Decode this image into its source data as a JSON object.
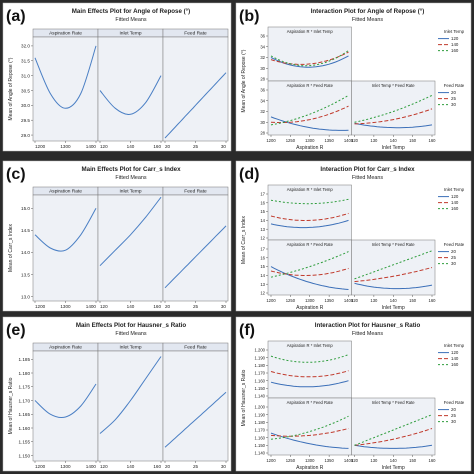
{
  "colors": {
    "frame": "#2a2a2a",
    "panel_bg": "#ffffff",
    "plot_bg": "#eef1f6",
    "strip_bg": "#e2e7f0",
    "line": "#4a7fc4",
    "t120": "#3b6fb8",
    "t140": "#c0392b",
    "t160": "#2e9d3c"
  },
  "chart_data": [
    {
      "type": "line",
      "panel_letter": "(a)",
      "title": "Main Effects Plot for Angle of Repose (°)",
      "subtitle": "Fitted Means",
      "ylabel": "Mean of Angle of Repose (°)",
      "ylim": [
        28.8,
        32.3
      ],
      "yticks": [
        "29.0",
        "29.5",
        "30.0",
        "30.5",
        "31.0",
        "31.5",
        "32.0"
      ],
      "facets": [
        {
          "name": "Aspiration Rate",
          "xlim": [
            1200,
            1400
          ],
          "xticks": [
            "1200",
            "1300",
            "1400"
          ],
          "series": [
            {
              "x": [
                1200,
                1250,
                1300,
                1350,
                1400
              ],
              "y": [
                31.6,
                30.4,
                29.9,
                30.4,
                32.0
              ]
            }
          ]
        },
        {
          "name": "Inlet Temp",
          "xlim": [
            120,
            160
          ],
          "xticks": [
            "120",
            "140",
            "160"
          ],
          "series": [
            {
              "x": [
                120,
                130,
                140,
                150,
                160
              ],
              "y": [
                30.5,
                29.9,
                29.7,
                30.1,
                31.0
              ]
            }
          ]
        },
        {
          "name": "Feed Rate",
          "xlim": [
            20,
            30
          ],
          "xticks": [
            "20",
            "25",
            "30"
          ],
          "series": [
            {
              "x": [
                20,
                25,
                30
              ],
              "y": [
                28.9,
                30.0,
                31.1
              ]
            }
          ]
        }
      ]
    },
    {
      "type": "line",
      "panel_letter": "(b)",
      "title": "Interaction Plot for Angle of Repose (°)",
      "subtitle": "Fitted Means",
      "ylabel": "Mean of Angle of Repose (°)",
      "ylim": [
        28,
        36
      ],
      "yticks": [
        "28",
        "30",
        "32",
        "34",
        "36"
      ],
      "xlabel_left": "Aspiration R",
      "xlabel_right": "Inlet Temp",
      "cells": [
        {
          "label": "Aspiration R * Inlet Temp",
          "pos": "tl",
          "xlim": [
            1200,
            1400
          ],
          "xticks": [],
          "series": [
            {
              "key": "t120",
              "x": [
                1200,
                1300,
                1400
              ],
              "y": [
                32.0,
                30.2,
                32.3
              ]
            },
            {
              "key": "t140",
              "x": [
                1200,
                1300,
                1400
              ],
              "y": [
                31.6,
                30.8,
                33.0
              ]
            },
            {
              "key": "t160",
              "x": [
                1200,
                1300,
                1400
              ],
              "y": [
                32.3,
                30.5,
                33.3
              ]
            }
          ]
        },
        {
          "label": "Aspiration R * Feed Rate",
          "pos": "bl",
          "xlim": [
            1200,
            1400
          ],
          "xticks": [
            "1200",
            "1250",
            "1300",
            "1350",
            "1400"
          ],
          "series": [
            {
              "key": "t120",
              "x": [
                1200,
                1300,
                1400
              ],
              "y": [
                31.0,
                29.0,
                28.5
              ]
            },
            {
              "key": "t140",
              "x": [
                1200,
                1300,
                1400
              ],
              "y": [
                30.0,
                30.5,
                33.0
              ]
            },
            {
              "key": "t160",
              "x": [
                1200,
                1300,
                1400
              ],
              "y": [
                29.5,
                31.5,
                35.0
              ]
            }
          ]
        },
        {
          "label": "Inlet Temp * Feed Rate",
          "pos": "br",
          "xlim": [
            120,
            160
          ],
          "xticks": [
            "120",
            "130",
            "140",
            "150",
            "160"
          ],
          "series": [
            {
              "key": "t120",
              "x": [
                120,
                140,
                160
              ],
              "y": [
                29.8,
                29.0,
                29.5
              ]
            },
            {
              "key": "t140",
              "x": [
                120,
                140,
                160
              ],
              "y": [
                29.7,
                30.5,
                32.5
              ]
            },
            {
              "key": "t160",
              "x": [
                120,
                140,
                160
              ],
              "y": [
                30.0,
                32.0,
                35.0
              ]
            }
          ]
        }
      ],
      "legends": [
        {
          "title": "Inlet Temp",
          "entries": [
            "120",
            "140",
            "160"
          ]
        },
        {
          "title": "Feed Rate",
          "entries": [
            "20",
            "25",
            "30"
          ]
        }
      ]
    },
    {
      "type": "line",
      "panel_letter": "(c)",
      "title": "Main Effects Plot for Carr_s Index",
      "subtitle": "Fitted Means",
      "ylabel": "Mean of Carr_s Index",
      "ylim": [
        12.9,
        15.3
      ],
      "yticks": [
        "13.0",
        "13.5",
        "14.0",
        "14.5",
        "15.0"
      ],
      "facets": [
        {
          "name": "Aspiration Rate",
          "xlim": [
            1200,
            1400
          ],
          "xticks": [
            "1200",
            "1300",
            "1400"
          ],
          "series": [
            {
              "x": [
                1200,
                1250,
                1300,
                1350,
                1400
              ],
              "y": [
                14.4,
                14.1,
                14.05,
                14.4,
                15.0
              ]
            }
          ]
        },
        {
          "name": "Inlet Temp",
          "xlim": [
            120,
            160
          ],
          "xticks": [
            "120",
            "140",
            "160"
          ],
          "series": [
            {
              "x": [
                120,
                130,
                140,
                150,
                160
              ],
              "y": [
                13.7,
                14.05,
                14.4,
                14.8,
                15.25
              ]
            }
          ]
        },
        {
          "name": "Feed Rate",
          "xlim": [
            20,
            30
          ],
          "xticks": [
            "20",
            "25",
            "30"
          ],
          "series": [
            {
              "x": [
                20,
                25,
                30
              ],
              "y": [
                13.2,
                13.9,
                14.6
              ]
            }
          ]
        }
      ]
    },
    {
      "type": "line",
      "panel_letter": "(d)",
      "title": "Interaction Plot for Carr_s Index",
      "subtitle": "Fitted Means",
      "ylabel": "Mean of Carr_s Index",
      "ylim": [
        12,
        17
      ],
      "yticks": [
        "12",
        "13",
        "14",
        "15",
        "16",
        "17"
      ],
      "xlabel_left": "Aspiration R",
      "xlabel_right": "Inlet Temp",
      "cells": [
        {
          "label": "Aspiration R * Inlet Temp",
          "pos": "tl",
          "xlim": [
            1200,
            1400
          ],
          "xticks": [],
          "series": [
            {
              "key": "t120",
              "x": [
                1200,
                1300,
                1400
              ],
              "y": [
                13.6,
                13.2,
                14.0
              ]
            },
            {
              "key": "t140",
              "x": [
                1200,
                1300,
                1400
              ],
              "y": [
                14.5,
                14.0,
                14.8
              ]
            },
            {
              "key": "t160",
              "x": [
                1200,
                1300,
                1400
              ],
              "y": [
                16.3,
                15.9,
                16.4
              ]
            }
          ]
        },
        {
          "label": "Aspiration R * Feed Rate",
          "pos": "bl",
          "xlim": [
            1200,
            1400
          ],
          "xticks": [
            "1200",
            "1250",
            "1300",
            "1350",
            "1400"
          ],
          "series": [
            {
              "key": "t120",
              "x": [
                1200,
                1300,
                1400
              ],
              "y": [
                15.0,
                13.2,
                12.4
              ]
            },
            {
              "key": "t140",
              "x": [
                1200,
                1300,
                1400
              ],
              "y": [
                14.5,
                14.0,
                14.8
              ]
            },
            {
              "key": "t160",
              "x": [
                1200,
                1300,
                1400
              ],
              "y": [
                13.8,
                15.0,
                16.7
              ]
            }
          ]
        },
        {
          "label": "Inlet Temp * Feed Rate",
          "pos": "br",
          "xlim": [
            120,
            160
          ],
          "xticks": [
            "120",
            "130",
            "140",
            "150",
            "160"
          ],
          "series": [
            {
              "key": "t120",
              "x": [
                120,
                140,
                160
              ],
              "y": [
                13.1,
                12.5,
                12.9
              ]
            },
            {
              "key": "t140",
              "x": [
                120,
                140,
                160
              ],
              "y": [
                13.3,
                13.9,
                14.9
              ]
            },
            {
              "key": "t160",
              "x": [
                120,
                140,
                160
              ],
              "y": [
                13.6,
                15.2,
                16.8
              ]
            }
          ]
        }
      ],
      "legends": [
        {
          "title": "Inlet Temp",
          "entries": [
            "120",
            "140",
            "160"
          ]
        },
        {
          "title": "Feed Rate",
          "entries": [
            "20",
            "25",
            "30"
          ]
        }
      ]
    },
    {
      "type": "line",
      "panel_letter": "(e)",
      "title": "Main Effects Plot for Hausner_s Ratio",
      "subtitle": "Fitted Means",
      "ylabel": "Mean of Hausner_s Ratio",
      "ylim": [
        1.148,
        1.188
      ],
      "yticks": [
        "1.150",
        "1.155",
        "1.160",
        "1.165",
        "1.170",
        "1.175",
        "1.180",
        "1.185"
      ],
      "facets": [
        {
          "name": "Aspiration Rate",
          "xlim": [
            1200,
            1400
          ],
          "xticks": [
            "1200",
            "1300",
            "1400"
          ],
          "series": [
            {
              "x": [
                1200,
                1250,
                1300,
                1350,
                1400
              ],
              "y": [
                1.17,
                1.165,
                1.164,
                1.168,
                1.176
              ]
            }
          ]
        },
        {
          "name": "Inlet Temp",
          "xlim": [
            120,
            160
          ],
          "xticks": [
            "120",
            "140",
            "160"
          ],
          "series": [
            {
              "x": [
                120,
                130,
                140,
                150,
                160
              ],
              "y": [
                1.158,
                1.163,
                1.17,
                1.178,
                1.186
              ]
            }
          ]
        },
        {
          "name": "Feed Rate",
          "xlim": [
            20,
            30
          ],
          "xticks": [
            "20",
            "25",
            "30"
          ],
          "series": [
            {
              "x": [
                20,
                25,
                30
              ],
              "y": [
                1.153,
                1.163,
                1.173
              ]
            }
          ]
        }
      ]
    },
    {
      "type": "line",
      "panel_letter": "(f)",
      "title": "Interaction Plot for Hausner_s Ratio",
      "subtitle": "Fitted Means",
      "ylabel": "Mean of Hausner_s Ratio",
      "ylim": [
        1.14,
        1.2
      ],
      "yticks": [
        "1.140",
        "1.150",
        "1.160",
        "1.170",
        "1.180",
        "1.190",
        "1.200"
      ],
      "xlabel_left": "Aspiration R",
      "xlabel_right": "Inlet Temp",
      "cells": [
        {
          "label": "Aspiration R * Inlet Temp",
          "pos": "tl",
          "xlim": [
            1200,
            1400
          ],
          "xticks": [],
          "series": [
            {
              "key": "t120",
              "x": [
                1200,
                1300,
                1400
              ],
              "y": [
                1.158,
                1.152,
                1.16
              ]
            },
            {
              "key": "t140",
              "x": [
                1200,
                1300,
                1400
              ],
              "y": [
                1.172,
                1.165,
                1.173
              ]
            },
            {
              "key": "t160",
              "x": [
                1200,
                1300,
                1400
              ],
              "y": [
                1.192,
                1.184,
                1.194
              ]
            }
          ]
        },
        {
          "label": "Aspiration R * Feed Rate",
          "pos": "bl",
          "xlim": [
            1200,
            1400
          ],
          "xticks": [
            "1200",
            "1250",
            "1300",
            "1350",
            "1400"
          ],
          "series": [
            {
              "key": "t120",
              "x": [
                1200,
                1300,
                1400
              ],
              "y": [
                1.166,
                1.152,
                1.146
              ]
            },
            {
              "key": "t140",
              "x": [
                1200,
                1300,
                1400
              ],
              "y": [
                1.163,
                1.163,
                1.172
              ]
            },
            {
              "key": "t160",
              "x": [
                1200,
                1300,
                1400
              ],
              "y": [
                1.158,
                1.168,
                1.188
              ]
            }
          ]
        },
        {
          "label": "Inlet Temp * Feed Rate",
          "pos": "br",
          "xlim": [
            120,
            160
          ],
          "xticks": [
            "120",
            "130",
            "140",
            "150",
            "160"
          ],
          "series": [
            {
              "key": "t120",
              "x": [
                120,
                140,
                160
              ],
              "y": [
                1.15,
                1.146,
                1.15
              ]
            },
            {
              "key": "t140",
              "x": [
                120,
                140,
                160
              ],
              "y": [
                1.15,
                1.158,
                1.172
              ]
            },
            {
              "key": "t160",
              "x": [
                120,
                140,
                160
              ],
              "y": [
                1.15,
                1.17,
                1.19
              ]
            }
          ]
        }
      ],
      "legends": [
        {
          "title": "Inlet Temp",
          "entries": [
            "120",
            "140",
            "160"
          ]
        },
        {
          "title": "Feed Rate",
          "entries": [
            "20",
            "25",
            "30"
          ]
        }
      ]
    }
  ]
}
